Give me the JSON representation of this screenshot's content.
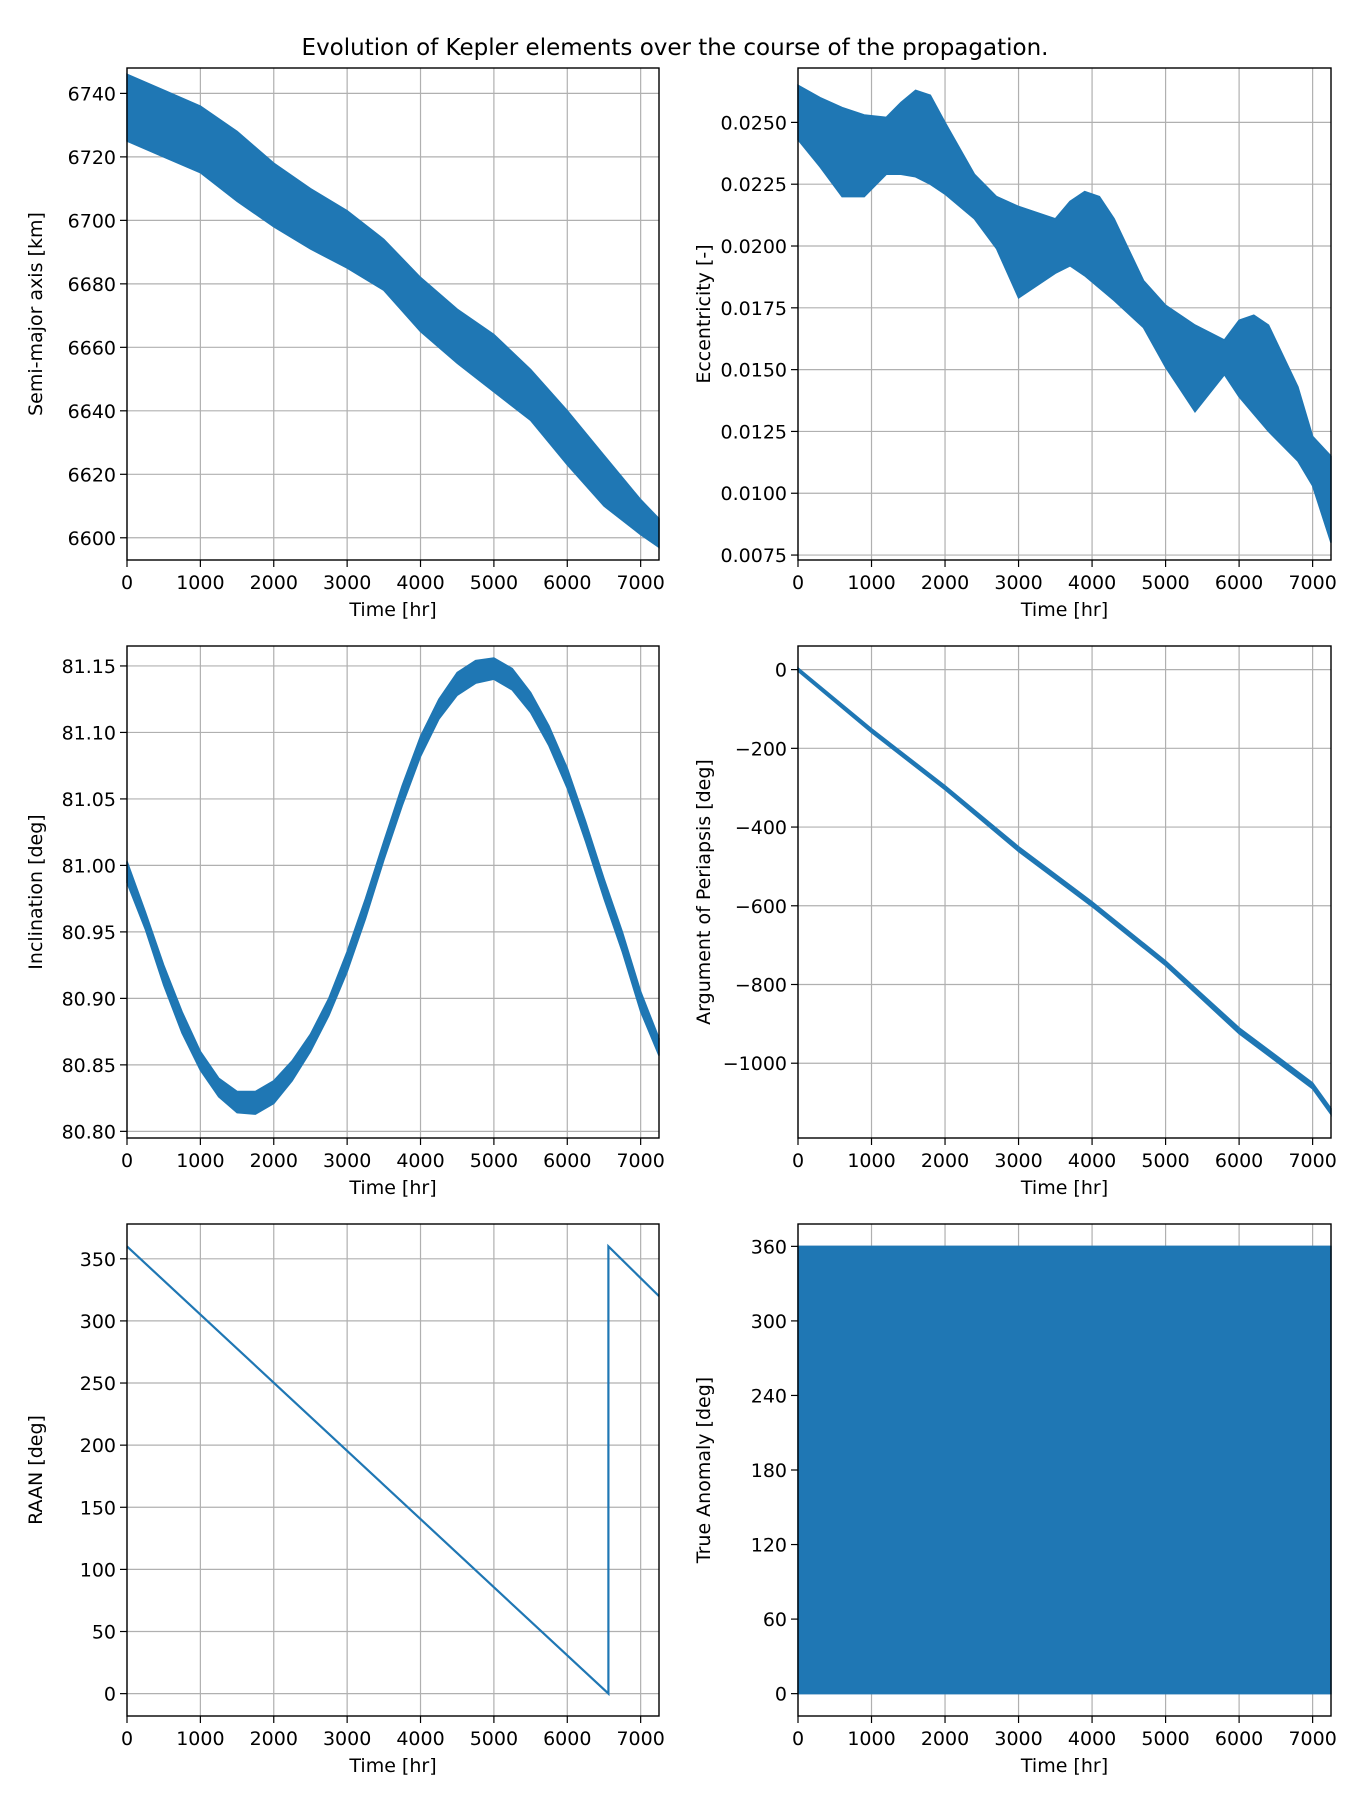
{
  "figure": {
    "title": "Evolution of Kepler elements over the course of the propagation.",
    "color": "#1f77b4"
  },
  "chart_data": [
    {
      "id": "sma",
      "type": "area",
      "xlabel": "Time [hr]",
      "ylabel": "Semi-major axis [km]",
      "xlim": [
        0,
        7250
      ],
      "ylim": [
        6593,
        6748
      ],
      "xticks": [
        0,
        1000,
        2000,
        3000,
        4000,
        5000,
        6000,
        7000
      ],
      "yticks": [
        6600,
        6620,
        6640,
        6660,
        6680,
        6700,
        6720,
        6740
      ],
      "grid": true,
      "series": [
        {
          "x": [
            0,
            500,
            1000,
            1500,
            2000,
            2500,
            3000,
            3500,
            4000,
            4500,
            5000,
            5500,
            6000,
            6500,
            7000,
            7250
          ],
          "upper": [
            6746,
            6741,
            6736,
            6728,
            6718,
            6710,
            6703,
            6694,
            6682,
            6672,
            6664,
            6653,
            6640,
            6626,
            6612,
            6606
          ],
          "lower": [
            6725,
            6720,
            6715,
            6706,
            6698,
            6691,
            6685,
            6678,
            6665,
            6655,
            6646,
            6637,
            6623,
            6610,
            6601,
            6597
          ]
        }
      ]
    },
    {
      "id": "ecc",
      "type": "area",
      "xlabel": "Time [hr]",
      "ylabel": "Eccentricity [-]",
      "xlim": [
        0,
        7250
      ],
      "ylim": [
        0.0073,
        0.0272
      ],
      "xticks": [
        0,
        1000,
        2000,
        3000,
        4000,
        5000,
        6000,
        7000
      ],
      "yticks": [
        0.0075,
        0.01,
        0.0125,
        0.015,
        0.0175,
        0.02,
        0.0225,
        0.025
      ],
      "ytick_labels": [
        "0.0075",
        "0.0100",
        "0.0125",
        "0.0150",
        "0.0175",
        "0.0200",
        "0.0225",
        "0.0250"
      ],
      "grid": true,
      "series": [
        {
          "x": [
            0,
            300,
            600,
            900,
            1200,
            1400,
            1600,
            1800,
            2000,
            2400,
            2700,
            3000,
            3500,
            3700,
            3900,
            4100,
            4300,
            4700,
            5000,
            5400,
            5800,
            6000,
            6200,
            6400,
            6800,
            7000,
            7250
          ],
          "upper": [
            0.0265,
            0.026,
            0.0256,
            0.0253,
            0.0252,
            0.0258,
            0.0263,
            0.0261,
            0.025,
            0.0229,
            0.022,
            0.0216,
            0.0211,
            0.0218,
            0.0222,
            0.022,
            0.0211,
            0.0186,
            0.0176,
            0.0168,
            0.0162,
            0.017,
            0.0172,
            0.0168,
            0.0143,
            0.0123,
            0.0115
          ],
          "lower": [
            0.0243,
            0.0232,
            0.022,
            0.022,
            0.0229,
            0.0229,
            0.0228,
            0.0225,
            0.0221,
            0.0211,
            0.0199,
            0.0179,
            0.0189,
            0.0192,
            0.0188,
            0.0183,
            0.0178,
            0.0167,
            0.0151,
            0.0133,
            0.0148,
            0.0139,
            0.0132,
            0.0125,
            0.0113,
            0.0103,
            0.008
          ]
        }
      ]
    },
    {
      "id": "inc",
      "type": "area",
      "xlabel": "Time [hr]",
      "ylabel": "Inclination [deg]",
      "xlim": [
        0,
        7250
      ],
      "ylim": [
        80.795,
        81.165
      ],
      "xticks": [
        0,
        1000,
        2000,
        3000,
        4000,
        5000,
        6000,
        7000
      ],
      "yticks": [
        80.8,
        80.85,
        80.9,
        80.95,
        81.0,
        81.05,
        81.1,
        81.15
      ],
      "ytick_labels": [
        "80.80",
        "80.85",
        "80.90",
        "80.95",
        "81.00",
        "81.05",
        "81.10",
        "81.15"
      ],
      "grid": true,
      "series": [
        {
          "x": [
            0,
            250,
            500,
            750,
            1000,
            1250,
            1500,
            1750,
            2000,
            2250,
            2500,
            2750,
            3000,
            3250,
            3500,
            3750,
            4000,
            4250,
            4500,
            4750,
            5000,
            5250,
            5500,
            5750,
            6000,
            6250,
            6500,
            6750,
            7000,
            7250
          ],
          "upper": [
            81.003,
            80.965,
            80.925,
            80.89,
            80.86,
            80.84,
            80.83,
            80.83,
            80.838,
            80.853,
            80.873,
            80.9,
            80.935,
            80.975,
            81.018,
            81.06,
            81.097,
            81.125,
            81.145,
            81.154,
            81.156,
            81.148,
            81.13,
            81.105,
            81.073,
            81.033,
            80.99,
            80.95,
            80.905,
            80.87
          ],
          "lower": [
            80.987,
            80.952,
            80.91,
            80.874,
            80.846,
            80.826,
            80.814,
            80.813,
            80.821,
            80.838,
            80.86,
            80.887,
            80.92,
            80.96,
            81.004,
            81.045,
            81.082,
            81.11,
            81.128,
            81.137,
            81.14,
            81.132,
            81.115,
            81.09,
            81.058,
            81.018,
            80.975,
            80.935,
            80.89,
            80.857
          ]
        }
      ]
    },
    {
      "id": "aop",
      "type": "area",
      "xlabel": "Time [hr]",
      "ylabel": "Argument of Periapsis [deg]",
      "xlim": [
        0,
        7250
      ],
      "ylim": [
        -1190,
        60
      ],
      "xticks": [
        0,
        1000,
        2000,
        3000,
        4000,
        5000,
        6000,
        7000
      ],
      "yticks": [
        -1000,
        -800,
        -600,
        -400,
        -200,
        0
      ],
      "ytick_labels": [
        "−1000",
        "−800",
        "−600",
        "−400",
        "−200",
        "0"
      ],
      "grid": true,
      "series": [
        {
          "x": [
            0,
            1000,
            2000,
            3000,
            4000,
            5000,
            6000,
            7000,
            7250
          ],
          "upper": [
            4,
            -150,
            -295,
            -450,
            -590,
            -740,
            -910,
            -1050,
            -1115
          ],
          "lower": [
            -4,
            -160,
            -305,
            -462,
            -602,
            -752,
            -925,
            -1065,
            -1130
          ]
        }
      ]
    },
    {
      "id": "raan",
      "type": "line",
      "xlabel": "Time [hr]",
      "ylabel": "RAAN [deg]",
      "xlim": [
        0,
        7250
      ],
      "ylim": [
        -18,
        378
      ],
      "xticks": [
        0,
        1000,
        2000,
        3000,
        4000,
        5000,
        6000,
        7000
      ],
      "yticks": [
        0,
        50,
        100,
        150,
        200,
        250,
        300,
        350
      ],
      "grid": true,
      "series": [
        {
          "x": [
            0,
            6560,
            6560,
            7250
          ],
          "y": [
            360,
            0,
            360,
            320
          ]
        }
      ]
    },
    {
      "id": "ta",
      "type": "area",
      "xlabel": "Time [hr]",
      "ylabel": "True Anomaly [deg]",
      "xlim": [
        0,
        7250
      ],
      "ylim": [
        -18,
        378
      ],
      "xticks": [
        0,
        1000,
        2000,
        3000,
        4000,
        5000,
        6000,
        7000
      ],
      "yticks": [
        0,
        60,
        120,
        180,
        240,
        300,
        360
      ],
      "grid": true,
      "series": [
        {
          "x": [
            0,
            7250
          ],
          "upper": [
            360,
            360
          ],
          "lower": [
            0,
            0
          ]
        }
      ]
    }
  ]
}
